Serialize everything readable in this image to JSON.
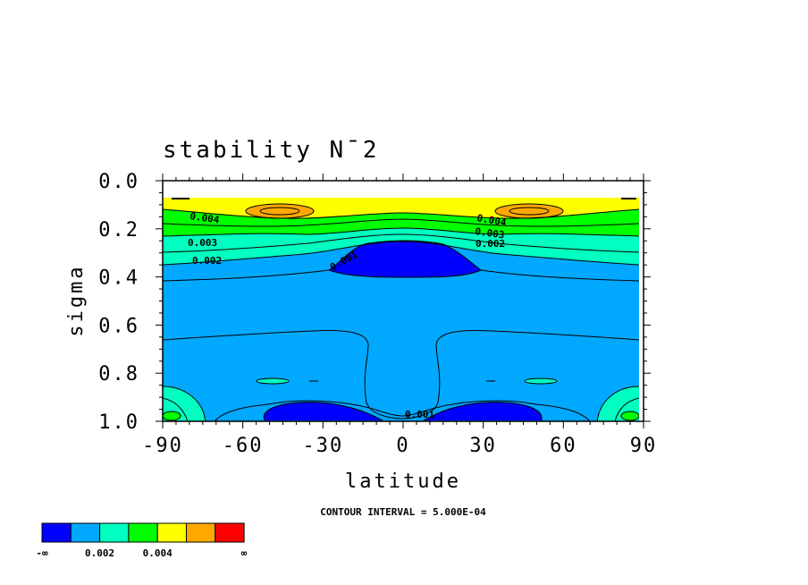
{
  "chart_data": {
    "type": "contour",
    "title": "stability N¯2",
    "xlabel": "latitude",
    "ylabel": "sigma",
    "xlim": [
      -90,
      90
    ],
    "ylim": [
      1.0,
      0.0
    ],
    "x_ticks": [
      "-90",
      "-60",
      "-30",
      "0",
      "30",
      "60",
      "90"
    ],
    "y_ticks": [
      "0.0",
      "0.2",
      "0.4",
      "0.6",
      "0.8",
      "1.0"
    ],
    "contour_interval_note": "CONTOUR INTERVAL = 5.000E-04",
    "contour_labels": [
      "0.004",
      "0.003",
      "0.002",
      "0.001",
      "0.004",
      "0.003",
      "0.002",
      "0.001"
    ],
    "colorbar": {
      "colors": [
        "#0000ff",
        "#00a8ff",
        "#00ffc0",
        "#00ff00",
        "#ffff00",
        "#ffa800",
        "#ff0000"
      ],
      "labels": [
        "-∞",
        "0.002",
        "0.004",
        "∞"
      ]
    },
    "colors": {
      "very_low": "#0000ff",
      "low": "#00a8ff",
      "mid": "#00ffc0",
      "upper_mid": "#00ff00",
      "high": "#ffff00",
      "very_high": "#ffa800",
      "max": "#ff0000"
    }
  }
}
